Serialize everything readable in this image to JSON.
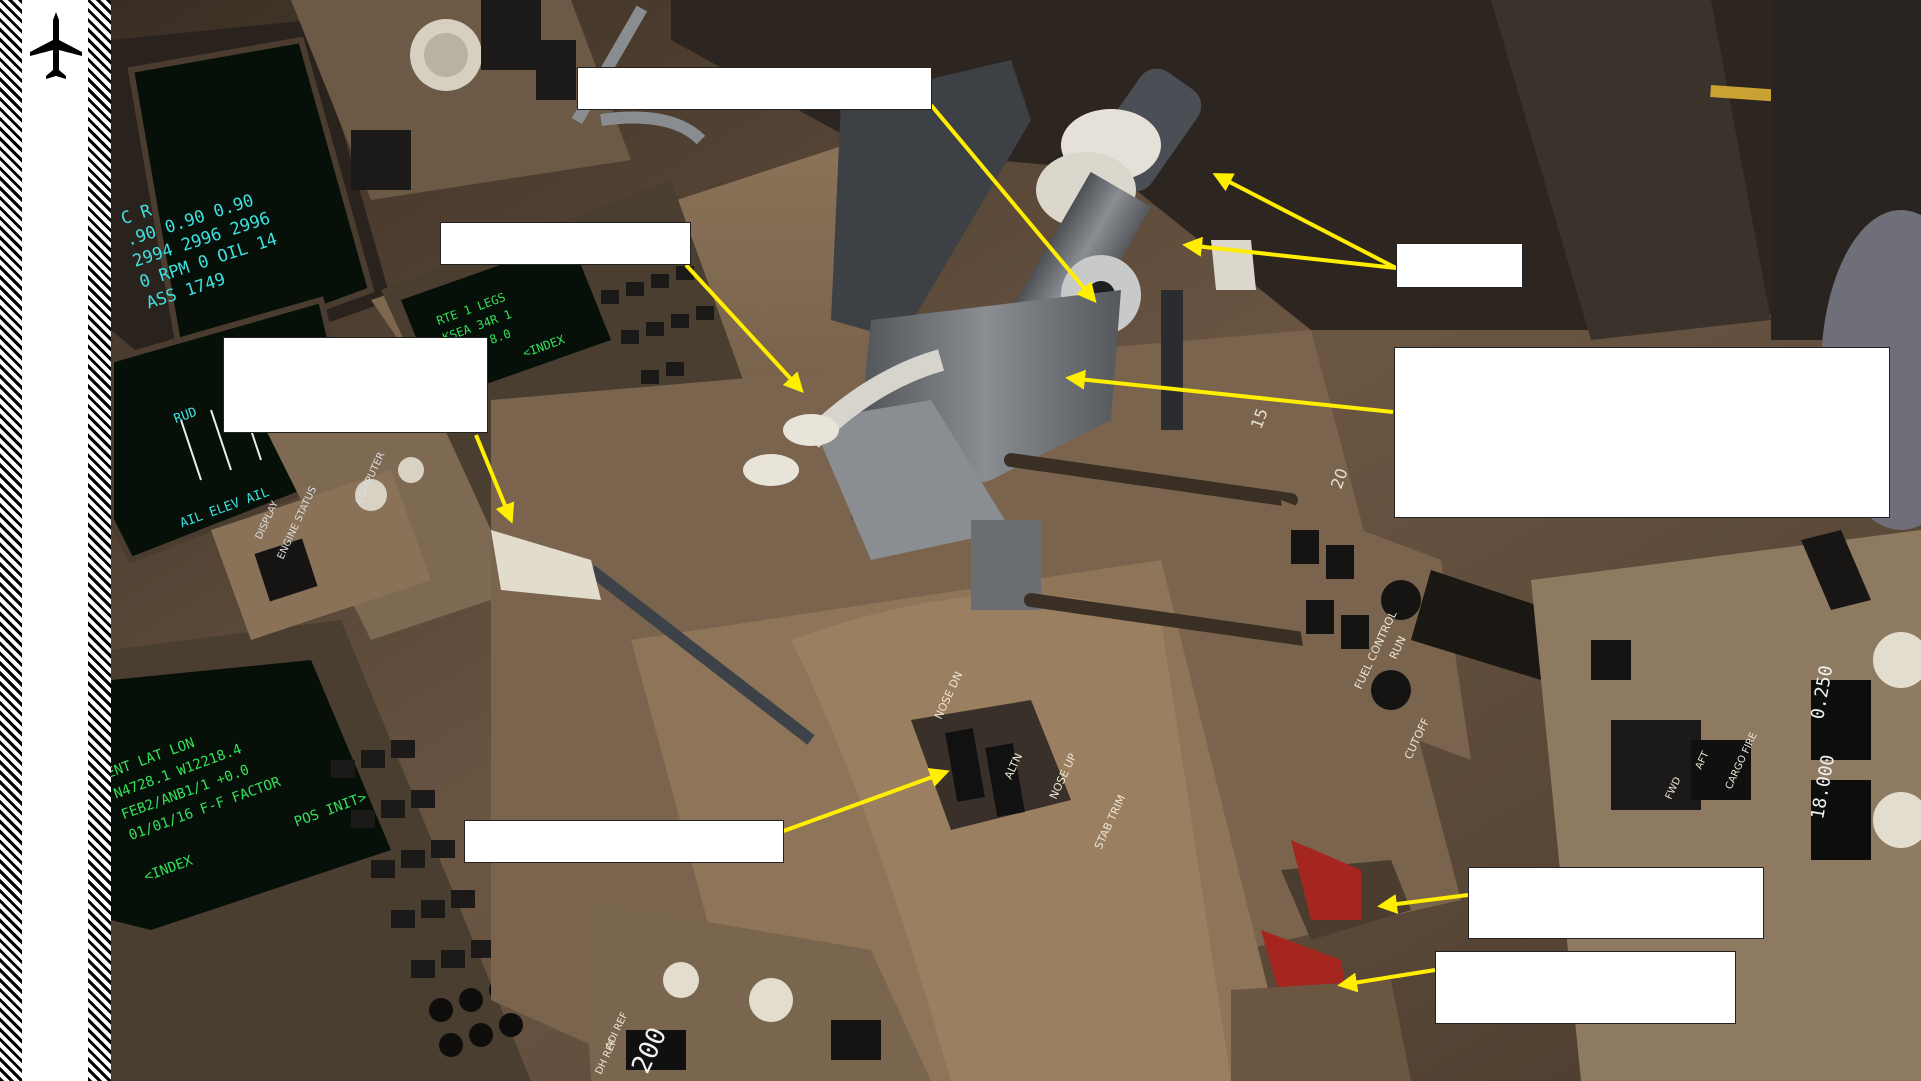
{
  "colors": {
    "cockpit_base": "#5b4a38",
    "panel_tan": "#8a7258",
    "panel_dark": "#3e3226",
    "screen_bg": "#0a140c",
    "screen_green": "#35e05a",
    "screen_cyan": "#3fe0e0",
    "arrow_yellow": "#ffee00",
    "lever_gray": "#6f7276",
    "knob_cream": "#e7e2d6",
    "switch_red": "#a5261f"
  },
  "icons": {
    "sidebar": "airplane-icon"
  },
  "screens": {
    "engine_display": {
      "lines": [
        "C  R",
        ".90 0.90 0.90",
        "2994 2996 2996",
        "0 RPM 0  OIL 14",
        "ASS 1749"
      ],
      "lower_labels": [
        "RUD",
        "AIL  ELEV  AIL"
      ]
    }
  },
  "panel_labels": {
    "display": "DISPLAY",
    "engine_status": "ENGINE STATUS",
    "eng_comp": "COMPUTER",
    "stab_trim": "STAB TRIM",
    "alt_pitch": "ALTN",
    "nose_up": "NOSE UP",
    "nose_dn": "NOSE DN",
    "fuel_control": "FUEL CONTROL",
    "run": "RUN",
    "cutoff": "CUTOFF",
    "cargo_fire": "CARGO FIRE",
    "fwd": "FWD",
    "aft": "AFT",
    "adi_ref": "ADI REF",
    "dh_ref": "DH REF",
    "index": "<INDEX",
    "pos_init": "POS INIT>"
  }
}
